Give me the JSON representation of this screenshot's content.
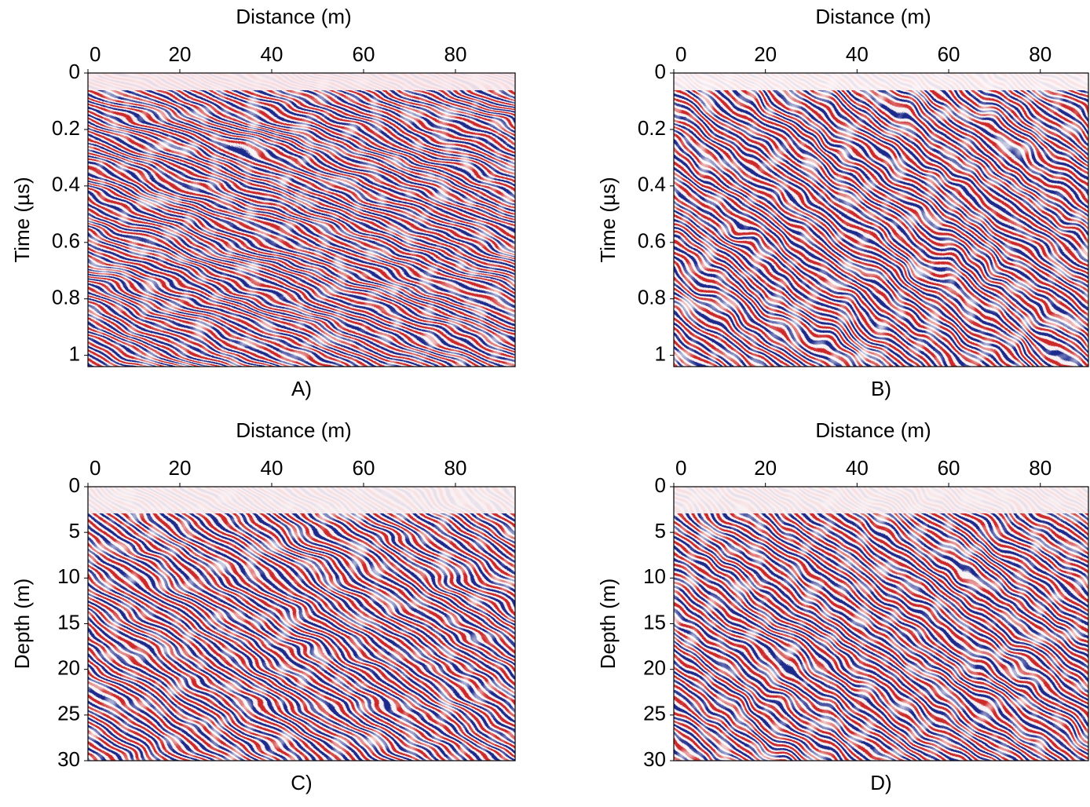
{
  "chart_data": [
    {
      "type": "heatmap",
      "xlabel": "Distance (m)",
      "ylabel": "Time (µs)",
      "caption": "A)",
      "xlim": [
        0,
        93
      ],
      "ylim": [
        0,
        1.04
      ],
      "xticks": [
        0,
        20,
        40,
        60,
        80
      ],
      "yticks": [
        0,
        0.2,
        0.4,
        0.6,
        0.8,
        1
      ]
    },
    {
      "type": "heatmap",
      "xlabel": "Distance (m)",
      "ylabel": "Time (µs)",
      "caption": "B)",
      "xlim": [
        0,
        90.5
      ],
      "ylim": [
        0,
        1.04
      ],
      "xticks": [
        0,
        20,
        40,
        60,
        80
      ],
      "yticks": [
        0,
        0.2,
        0.4,
        0.6,
        0.8,
        1
      ]
    },
    {
      "type": "heatmap",
      "xlabel": "Distance (m)",
      "ylabel": "Depth (m)",
      "caption": "C)",
      "xlim": [
        0,
        93
      ],
      "ylim": [
        0,
        30
      ],
      "xticks": [
        0,
        20,
        40,
        60,
        80
      ],
      "yticks": [
        0,
        5,
        10,
        15,
        20,
        25,
        30
      ]
    },
    {
      "type": "heatmap",
      "xlabel": "Distance (m)",
      "ylabel": "Depth (m)",
      "caption": "D)",
      "xlim": [
        0,
        90.5
      ],
      "ylim": [
        0,
        30
      ],
      "xticks": [
        0,
        20,
        40,
        60,
        80
      ],
      "yticks": [
        0,
        5,
        10,
        15,
        20,
        25,
        30
      ]
    }
  ]
}
